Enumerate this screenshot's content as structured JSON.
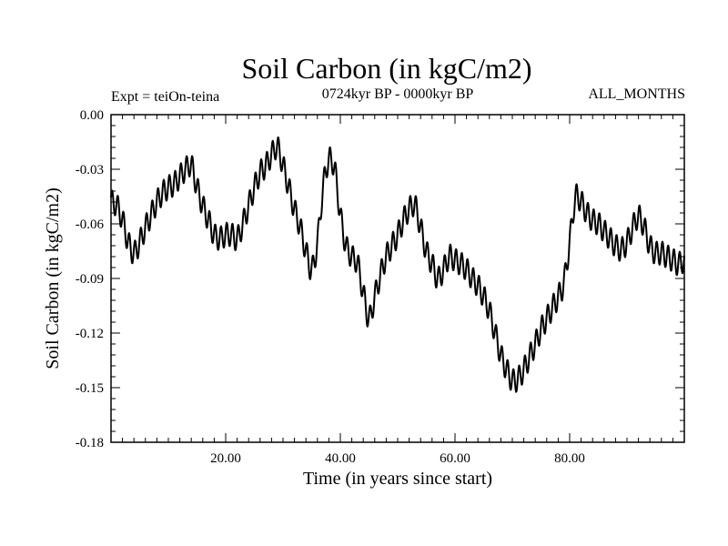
{
  "chart_data": {
    "type": "line",
    "title": "Soil Carbon (in kgC/m2)",
    "subtitle": "0724kyr BP - 0000kyr BP",
    "left_note": "Expt = teiOn-teina",
    "right_note": "ALL_MONTHS",
    "xlabel": "Time (in years since start)",
    "ylabel": "Soil Carbon (in kgC/m2)",
    "xlim": [
      0,
      100
    ],
    "ylim": [
      -0.18,
      0.0
    ],
    "x_ticks": [
      20,
      40,
      60,
      80
    ],
    "x_tick_labels": [
      "20.00",
      "40.00",
      "60.00",
      "80.00"
    ],
    "y_ticks": [
      0.0,
      -0.03,
      -0.06,
      -0.09,
      -0.12,
      -0.15,
      -0.18
    ],
    "y_tick_labels": [
      "0.00",
      "-0.03",
      "-0.06",
      "-0.09",
      "-0.12",
      "-0.15",
      "-0.18"
    ],
    "series": [
      {
        "name": "Soil Carbon",
        "color": "#000000",
        "x": [
          0,
          1,
          2,
          3,
          4,
          5,
          6,
          7,
          8,
          9,
          10,
          11,
          12,
          13,
          14,
          15,
          16,
          17,
          18,
          19,
          20,
          21,
          22,
          23,
          24,
          25,
          26,
          27,
          28,
          29,
          30,
          31,
          32,
          33,
          34,
          35,
          36,
          37,
          38,
          39,
          40,
          41,
          42,
          43,
          44,
          45,
          46,
          47,
          48,
          49,
          50,
          51,
          52,
          53,
          54,
          55,
          56,
          57,
          58,
          59,
          60,
          61,
          62,
          63,
          64,
          65,
          66,
          67,
          68,
          69,
          70,
          71,
          72,
          73,
          74,
          75,
          76,
          77,
          78,
          79,
          80,
          81,
          82,
          83,
          84,
          85,
          86,
          87,
          88,
          89,
          90,
          91,
          92,
          93,
          94,
          95,
          96,
          97,
          98,
          99,
          100
        ],
        "base": [
          -0.048,
          -0.05,
          -0.058,
          -0.07,
          -0.076,
          -0.07,
          -0.062,
          -0.055,
          -0.048,
          -0.043,
          -0.04,
          -0.038,
          -0.034,
          -0.03,
          -0.028,
          -0.04,
          -0.05,
          -0.058,
          -0.066,
          -0.068,
          -0.066,
          -0.066,
          -0.068,
          -0.06,
          -0.05,
          -0.04,
          -0.032,
          -0.028,
          -0.022,
          -0.018,
          -0.028,
          -0.04,
          -0.052,
          -0.062,
          -0.075,
          -0.085,
          -0.07,
          -0.04,
          -0.025,
          -0.03,
          -0.055,
          -0.072,
          -0.078,
          -0.082,
          -0.098,
          -0.112,
          -0.1,
          -0.088,
          -0.078,
          -0.072,
          -0.066,
          -0.058,
          -0.052,
          -0.05,
          -0.062,
          -0.075,
          -0.082,
          -0.09,
          -0.085,
          -0.078,
          -0.08,
          -0.082,
          -0.085,
          -0.09,
          -0.094,
          -0.1,
          -0.108,
          -0.12,
          -0.132,
          -0.14,
          -0.146,
          -0.145,
          -0.14,
          -0.133,
          -0.126,
          -0.118,
          -0.112,
          -0.106,
          -0.1,
          -0.092,
          -0.07,
          -0.046,
          -0.048,
          -0.054,
          -0.058,
          -0.06,
          -0.064,
          -0.068,
          -0.072,
          -0.074,
          -0.07,
          -0.062,
          -0.056,
          -0.062,
          -0.072,
          -0.076,
          -0.076,
          -0.078,
          -0.08,
          -0.082,
          -0.08
        ],
        "oscillation_amplitude": 0.0065,
        "oscillation_period": 1.0
      }
    ]
  }
}
